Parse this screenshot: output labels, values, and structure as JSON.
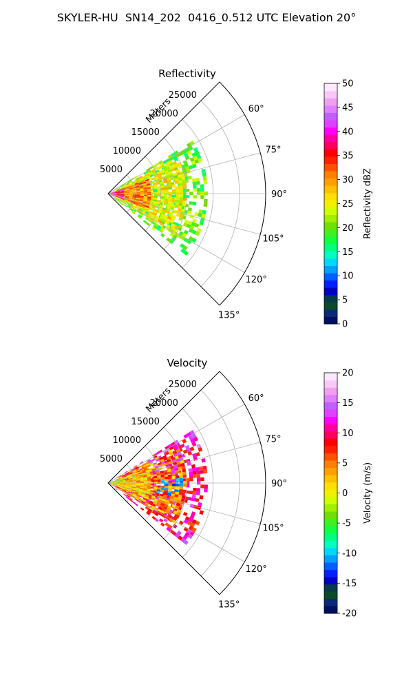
{
  "suptitle": "SKYLER-HU  SN14_202  0416_0.512 UTC Elevation 20°",
  "chart_data": [
    {
      "type": "polar-sector",
      "title": "Reflectivity",
      "range_label": "Meters",
      "range_ticks": [
        5000,
        10000,
        15000,
        20000,
        25000
      ],
      "range_max": 30000,
      "azimuth_range_deg": [
        45,
        135
      ],
      "azimuth_ticks_deg": [
        60,
        75,
        90,
        105,
        120,
        135
      ],
      "grid": true,
      "colorbar": {
        "label": "Reflectivity dBZ",
        "ticks": [
          0,
          5,
          10,
          15,
          20,
          25,
          30,
          35,
          40,
          45,
          50
        ],
        "range": [
          0,
          50
        ],
        "colors": [
          "#001060",
          "#0a2a78",
          "#0a4a2a",
          "#083a4a",
          "#0000c8",
          "#0020ff",
          "#0060ff",
          "#00a0ff",
          "#00d8ff",
          "#00ffc0",
          "#00ff80",
          "#10ff40",
          "#40f020",
          "#70e000",
          "#a0f000",
          "#d0ff00",
          "#f0f000",
          "#ffe000",
          "#ffc000",
          "#ffa000",
          "#ff8000",
          "#ff5000",
          "#ff2000",
          "#ff0000",
          "#ff0060",
          "#ff00a0",
          "#ff00ff",
          "#e040ff",
          "#c060ff",
          "#e080ff",
          "#f0a0f0",
          "#f8c8f8",
          "#ffe8ff"
        ]
      },
      "echo_regions": [
        {
          "band": [
            1500,
            19000
          ],
          "az": [
            58,
            128
          ],
          "value_dbz": 20
        },
        {
          "band": [
            1000,
            15000
          ],
          "az": [
            62,
            120
          ],
          "value_dbz": 25
        },
        {
          "band": [
            500,
            8000
          ],
          "az": [
            70,
            110
          ],
          "value_dbz": 30
        },
        {
          "band": [
            200,
            3000
          ],
          "az": [
            72,
            108
          ],
          "value_dbz": 38
        }
      ]
    },
    {
      "type": "polar-sector",
      "title": "Velocity",
      "range_label": "Meters",
      "range_ticks": [
        5000,
        10000,
        15000,
        20000,
        25000
      ],
      "range_max": 30000,
      "azimuth_range_deg": [
        45,
        135
      ],
      "azimuth_ticks_deg": [
        60,
        75,
        90,
        105,
        120,
        135
      ],
      "grid": true,
      "colorbar": {
        "label": "Velocity (m/s)",
        "ticks": [
          -20,
          -15,
          -10,
          -5,
          0,
          5,
          10,
          15,
          20
        ],
        "range": [
          -20,
          20
        ],
        "colors": [
          "#001060",
          "#0a2a78",
          "#0a4a2a",
          "#083a4a",
          "#0000c8",
          "#0020ff",
          "#0060ff",
          "#00a0ff",
          "#00d8ff",
          "#00ffc0",
          "#00ff80",
          "#10ff40",
          "#40f020",
          "#70e000",
          "#a0f000",
          "#d0ff00",
          "#f0f000",
          "#ffe000",
          "#ffc000",
          "#ffa000",
          "#ff8000",
          "#ff5000",
          "#ff2000",
          "#ff0000",
          "#ff0060",
          "#ff00a0",
          "#ff00ff",
          "#e040ff",
          "#c060ff",
          "#e080ff",
          "#f0a0f0",
          "#f8c8f8",
          "#ffe8ff"
        ]
      },
      "echo_regions": [
        {
          "band": [
            1500,
            19000
          ],
          "az": [
            58,
            128
          ],
          "value_ms": 10
        },
        {
          "band": [
            1000,
            15000
          ],
          "az": [
            62,
            120
          ],
          "value_ms": 5
        },
        {
          "band": [
            500,
            8000
          ],
          "az": [
            70,
            110
          ],
          "value_ms": 2
        },
        {
          "band": [
            200,
            3000
          ],
          "az": [
            72,
            108
          ],
          "value_ms": 0
        }
      ]
    }
  ]
}
